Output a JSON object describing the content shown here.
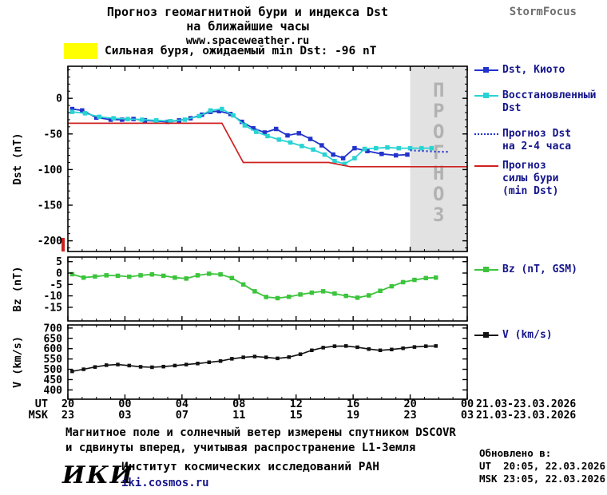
{
  "header": {
    "title_line1": "Прогноз геомагнитной бури и индекса Dst",
    "title_line2": "на ближайшие часы",
    "site": "www.spaceweather.ru",
    "brand": "StormFocus"
  },
  "alert": {
    "color": "#ffff00",
    "text": "Сильная буря, ожидаемый min Dst: -96 nT"
  },
  "chart_data": [
    {
      "type": "line",
      "title": "Dst index observed and forecast",
      "ylabel": "Dst (nT)",
      "ylim": [
        -215,
        45
      ],
      "yticks": [
        0,
        -50,
        -100,
        -150,
        -200
      ],
      "yminor": 10,
      "xlim": [
        0,
        28
      ],
      "grid": false,
      "legend_position": "right",
      "forecast_region": {
        "x0": 24,
        "x1": 28,
        "label": "ПРОГНОЗ"
      },
      "edge_marker": {
        "color": "#cf2020"
      },
      "series": [
        {
          "name": "Dst, Киото",
          "color": "#2233cc",
          "marker": "square",
          "style": "solid",
          "points": [
            [
              0.3,
              -15
            ],
            [
              1,
              -17
            ],
            [
              2,
              -27
            ],
            [
              3,
              -30
            ],
            [
              3.8,
              -30
            ],
            [
              4.6,
              -29
            ],
            [
              5.4,
              -31
            ],
            [
              6.2,
              -32
            ],
            [
              7,
              -33
            ],
            [
              7.8,
              -31
            ],
            [
              8.6,
              -28
            ],
            [
              9.4,
              -23
            ],
            [
              10,
              -19
            ],
            [
              10.6,
              -18
            ],
            [
              11.4,
              -22
            ],
            [
              12.2,
              -33
            ],
            [
              13,
              -42
            ],
            [
              13.8,
              -48
            ],
            [
              14.6,
              -43
            ],
            [
              15.4,
              -52
            ],
            [
              16.2,
              -49
            ],
            [
              17,
              -57
            ],
            [
              17.8,
              -66
            ],
            [
              18.6,
              -79
            ],
            [
              19.3,
              -84
            ],
            [
              20.1,
              -70
            ],
            [
              21,
              -74
            ],
            [
              22,
              -78
            ],
            [
              23,
              -80
            ],
            [
              23.8,
              -79
            ]
          ]
        },
        {
          "name": "Восстановленный\nDst",
          "color": "#29d3d3",
          "marker": "square",
          "style": "solid",
          "points": [
            [
              0.3,
              -19
            ],
            [
              1.2,
              -21
            ],
            [
              2.2,
              -26
            ],
            [
              3.2,
              -28
            ],
            [
              4.2,
              -29
            ],
            [
              5.2,
              -30
            ],
            [
              6.2,
              -31
            ],
            [
              7.2,
              -32
            ],
            [
              8.2,
              -30
            ],
            [
              9.2,
              -25
            ],
            [
              10,
              -17
            ],
            [
              10.8,
              -15
            ],
            [
              11.6,
              -24
            ],
            [
              12.4,
              -38
            ],
            [
              13.2,
              -47
            ],
            [
              14,
              -53
            ],
            [
              14.8,
              -58
            ],
            [
              15.6,
              -62
            ],
            [
              16.4,
              -67
            ],
            [
              17.2,
              -72
            ],
            [
              18,
              -79
            ],
            [
              18.7,
              -88
            ],
            [
              19.4,
              -92
            ],
            [
              20.1,
              -84
            ],
            [
              20.8,
              -71
            ],
            [
              21.6,
              -70
            ],
            [
              22.4,
              -69
            ],
            [
              23.2,
              -70
            ],
            [
              24,
              -70
            ],
            [
              24.8,
              -70
            ],
            [
              25.5,
              -70
            ]
          ]
        },
        {
          "name": "Прогноз Dst\nна 2-4 часа",
          "color": "#2233cc",
          "marker": "none",
          "style": "dotted",
          "width": 2.2,
          "points": [
            [
              24,
              -73
            ],
            [
              25,
              -74
            ],
            [
              26,
              -75
            ],
            [
              26.8,
              -75
            ]
          ]
        },
        {
          "name": "Прогноз\nсилы бури\n(min Dst)",
          "color": "#cf2020",
          "marker": "none",
          "style": "solid",
          "width": 1.7,
          "points": [
            [
              0,
              -35
            ],
            [
              10.8,
              -35
            ],
            [
              12.3,
              -90
            ],
            [
              18.3,
              -90
            ],
            [
              19.8,
              -96
            ],
            [
              28,
              -96
            ]
          ]
        }
      ]
    },
    {
      "type": "line",
      "title": "Bz GSM",
      "ylabel": "Bz (nT)",
      "ylim": [
        -21,
        7
      ],
      "yticks": [
        5,
        0,
        -5,
        -10,
        -15
      ],
      "xlim": [
        0,
        28
      ],
      "grid": false,
      "series": [
        {
          "name": "Bz (nT, GSM)",
          "color": "#3cc43c",
          "marker": "square",
          "style": "solid",
          "points": [
            [
              0.3,
              -0.5
            ],
            [
              1.1,
              -2
            ],
            [
              1.9,
              -1.5
            ],
            [
              2.7,
              -1
            ],
            [
              3.5,
              -1.2
            ],
            [
              4.3,
              -1.6
            ],
            [
              5.1,
              -1
            ],
            [
              5.9,
              -0.6
            ],
            [
              6.7,
              -1.2
            ],
            [
              7.5,
              -2
            ],
            [
              8.3,
              -2.4
            ],
            [
              9.1,
              -1
            ],
            [
              9.9,
              -0.3
            ],
            [
              10.7,
              -0.6
            ],
            [
              11.5,
              -2.2
            ],
            [
              12.3,
              -5
            ],
            [
              13.1,
              -8
            ],
            [
              13.9,
              -10.5
            ],
            [
              14.7,
              -11
            ],
            [
              15.5,
              -10.4
            ],
            [
              16.3,
              -9.4
            ],
            [
              17.1,
              -8.6
            ],
            [
              17.9,
              -8
            ],
            [
              18.7,
              -9
            ],
            [
              19.5,
              -10
            ],
            [
              20.3,
              -10.8
            ],
            [
              21.1,
              -9.8
            ],
            [
              21.9,
              -7.8
            ],
            [
              22.7,
              -5.8
            ],
            [
              23.5,
              -4
            ],
            [
              24.3,
              -3
            ],
            [
              25.1,
              -2.2
            ],
            [
              25.8,
              -2
            ]
          ]
        }
      ]
    },
    {
      "type": "line",
      "title": "Solar wind speed",
      "ylabel": "V (km/s)",
      "ylim": [
        355,
        715
      ],
      "yticks": [
        400,
        450,
        500,
        550,
        600,
        650,
        700
      ],
      "xlim": [
        0,
        28
      ],
      "grid": false,
      "series": [
        {
          "name": "V (km/s)",
          "color": "#111111",
          "marker": "square",
          "marker_size": 4.5,
          "style": "solid",
          "width": 1.6,
          "points": [
            [
              0.3,
              490
            ],
            [
              1.1,
              500
            ],
            [
              1.9,
              511
            ],
            [
              2.7,
              520
            ],
            [
              3.5,
              523
            ],
            [
              4.3,
              518
            ],
            [
              5.1,
              512
            ],
            [
              5.9,
              510
            ],
            [
              6.7,
              513
            ],
            [
              7.5,
              518
            ],
            [
              8.3,
              523
            ],
            [
              9.1,
              528
            ],
            [
              9.9,
              534
            ],
            [
              10.7,
              540
            ],
            [
              11.5,
              551
            ],
            [
              12.3,
              558
            ],
            [
              13.1,
              562
            ],
            [
              13.9,
              558
            ],
            [
              14.7,
              553
            ],
            [
              15.5,
              559
            ],
            [
              16.3,
              573
            ],
            [
              17.1,
              592
            ],
            [
              17.9,
              605
            ],
            [
              18.7,
              612
            ],
            [
              19.5,
              613
            ],
            [
              20.3,
              607
            ],
            [
              21.1,
              598
            ],
            [
              21.9,
              592
            ],
            [
              22.7,
              596
            ],
            [
              23.5,
              602
            ],
            [
              24.3,
              608
            ],
            [
              25.1,
              612
            ],
            [
              25.8,
              613
            ]
          ]
        }
      ]
    }
  ],
  "xaxis": {
    "ut_label": "UT",
    "msk_label": "MSK",
    "ut_ticks": [
      "20",
      "00",
      "04",
      "08",
      "12",
      "16",
      "20",
      "00"
    ],
    "msk_ticks": [
      "23",
      "03",
      "07",
      "11",
      "15",
      "19",
      "23",
      "03"
    ],
    "ut_date": "21.03-23.03.2026",
    "msk_date": "21.03-23.03.2026"
  },
  "footnote": {
    "line1": "Магнитное поле и солнечный ветер измерены спутником DSCOVR",
    "line2": "и сдвинуты вперед, учитывая распространение L1-Земля"
  },
  "updated": {
    "label": "Обновлено в:",
    "ut": "UT  20:05, 22.03.2026",
    "msk": "MSK 23:05, 22.03.2026"
  },
  "footer": {
    "logo": "ИКИ",
    "org": "Институт космических исследований РАН",
    "url": "iki.cosmos.ru"
  }
}
